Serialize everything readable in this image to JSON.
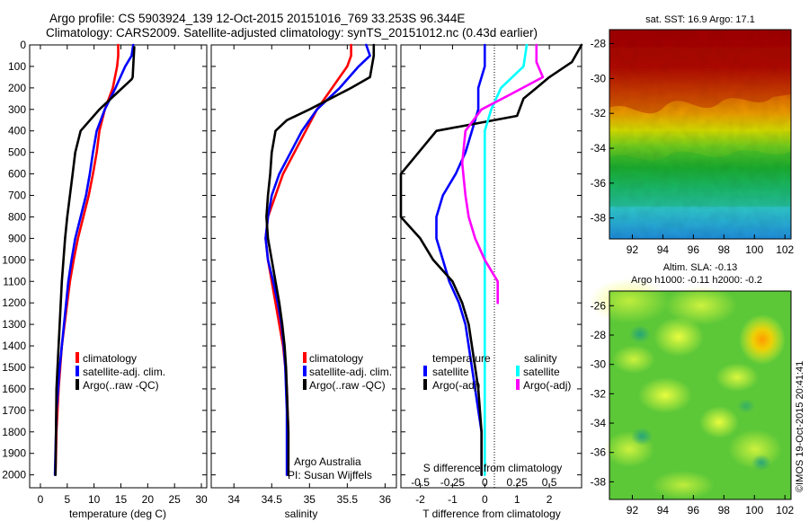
{
  "title_line1": "Argo profile: CS 5903924_139 12-Oct-2015 20151016_769 33.253S 96.344E",
  "title_line2": "Climatology: CARS2009. Satellite-adjusted climatology: synTS_20151012.nc (0.43d earlier)",
  "credit": "©IMOS 19-Oct-2015 20:41:41",
  "colors": {
    "climatology": "#ff0000",
    "satellite": "#0000ff",
    "argo": "#000000",
    "s_satellite": "#00ffff",
    "s_argo": "#ff00ff"
  },
  "chart_data": [
    {
      "type": "line",
      "xlabel": "temperature (deg C)",
      "xlim": [
        -2,
        31
      ],
      "ylim": [
        2060,
        0
      ],
      "xticks": [
        0,
        5,
        10,
        15,
        20,
        25,
        30
      ],
      "yticks": [
        0,
        100,
        200,
        300,
        400,
        500,
        600,
        700,
        800,
        900,
        1000,
        1100,
        1200,
        1300,
        1400,
        1500,
        1600,
        1700,
        1800,
        1900,
        2000
      ],
      "legend": [
        "climatology",
        "satellite-adj. clim.",
        "Argo(..raw -QC)"
      ],
      "legend_placement": "lower-right",
      "series": [
        {
          "name": "climatology",
          "color": "#ff0000",
          "x": [
            14.5,
            14.5,
            14.3,
            13.5,
            12.0,
            11.0,
            10.5,
            9.8,
            9.0,
            8.0,
            7.0,
            6.2,
            5.5,
            5.0,
            4.5,
            4.0,
            3.7,
            3.4,
            3.2,
            3.0,
            2.9,
            2.8
          ],
          "y": [
            0,
            50,
            100,
            200,
            300,
            400,
            500,
            600,
            700,
            800,
            900,
            1000,
            1100,
            1200,
            1300,
            1400,
            1500,
            1600,
            1700,
            1800,
            1900,
            2000
          ]
        },
        {
          "name": "satellite-adj. clim.",
          "color": "#0000ff",
          "x": [
            17.3,
            17.0,
            15.8,
            14.0,
            12.0,
            10.5,
            9.8,
            9.2,
            8.5,
            7.5,
            6.5,
            5.8,
            5.2,
            4.8,
            4.4,
            4.0,
            3.6,
            3.3,
            3.0,
            2.9,
            2.8,
            2.7
          ],
          "y": [
            0,
            50,
            100,
            200,
            300,
            400,
            500,
            600,
            700,
            800,
            900,
            1000,
            1100,
            1200,
            1300,
            1400,
            1500,
            1600,
            1700,
            1800,
            1900,
            2000
          ]
        },
        {
          "name": "Argo(..raw -QC)",
          "color": "#000000",
          "x": [
            17.5,
            17.3,
            17.2,
            17.0,
            14.0,
            11.0,
            7.5,
            6.5,
            6.0,
            5.5,
            5.0,
            4.6,
            4.3,
            4.0,
            3.8,
            3.6,
            3.4,
            3.2,
            3.0,
            2.9,
            2.8
          ],
          "y": [
            10,
            100,
            150,
            160,
            230,
            300,
            400,
            500,
            600,
            700,
            800,
            900,
            1000,
            1100,
            1200,
            1300,
            1400,
            1500,
            1600,
            1800,
            2000
          ]
        }
      ]
    },
    {
      "type": "line",
      "xlabel": "salinity",
      "xlim": [
        33.7,
        36.15
      ],
      "ylim": [
        2060,
        0
      ],
      "xticks": [
        34,
        34.5,
        35,
        35.5,
        36
      ],
      "legend": [
        "climatology",
        "satellite-adj. clim.",
        "Argo(..raw -QC)"
      ],
      "legend_placement": "lower-right",
      "annotation": [
        "Argo Australia",
        "PI: Susan Wijffels"
      ],
      "series": [
        {
          "name": "climatology",
          "color": "#ff0000",
          "x": [
            35.55,
            35.55,
            35.5,
            35.3,
            35.1,
            34.95,
            34.8,
            34.65,
            34.55,
            34.45,
            34.42,
            34.45,
            34.5,
            34.55,
            34.6,
            34.65,
            34.68,
            34.7,
            34.71,
            34.72,
            34.72,
            34.72
          ],
          "y": [
            0,
            50,
            100,
            200,
            300,
            400,
            500,
            600,
            700,
            800,
            900,
            1000,
            1100,
            1200,
            1300,
            1400,
            1500,
            1600,
            1700,
            1800,
            1900,
            2000
          ]
        },
        {
          "name": "satellite-adj. clim.",
          "color": "#0000ff",
          "x": [
            35.75,
            35.8,
            35.65,
            35.4,
            35.1,
            34.9,
            34.75,
            34.6,
            34.5,
            34.45,
            34.42,
            34.45,
            34.52,
            34.58,
            34.63,
            34.66,
            34.68,
            34.69,
            34.7,
            34.7,
            34.7,
            34.7
          ],
          "y": [
            0,
            50,
            100,
            200,
            300,
            400,
            500,
            600,
            700,
            800,
            900,
            1000,
            1100,
            1200,
            1300,
            1400,
            1500,
            1600,
            1700,
            1800,
            1900,
            2000
          ]
        },
        {
          "name": "Argo(..raw -QC)",
          "color": "#000000",
          "x": [
            35.85,
            35.85,
            35.8,
            35.55,
            35.0,
            34.7,
            34.55,
            34.5,
            34.48,
            34.45,
            34.43,
            34.45,
            34.5,
            34.55,
            34.6,
            34.64,
            34.67,
            34.69,
            34.7,
            34.71,
            34.72,
            34.72
          ],
          "y": [
            0,
            50,
            150,
            200,
            300,
            350,
            400,
            500,
            600,
            700,
            800,
            900,
            1000,
            1100,
            1200,
            1300,
            1400,
            1500,
            1600,
            1700,
            1800,
            2000
          ]
        }
      ]
    },
    {
      "type": "line",
      "xlabel": "T difference from climatology",
      "top_axis_label": "S difference from climatology",
      "xlim": [
        -2.6,
        3.0
      ],
      "ylim": [
        2060,
        0
      ],
      "xticks": [
        -2,
        -1,
        0,
        1,
        2
      ],
      "top_xticks": [
        {
          "label": "-0.5",
          "value": -2.0
        },
        {
          "label": "-0.25",
          "value": -1.0
        },
        {
          "label": "0",
          "value": 0.0
        },
        {
          "label": "0.25",
          "value": 1.0
        },
        {
          "label": "0.5",
          "value": 2.0
        }
      ],
      "legend_headers": [
        "temperature",
        "salinity"
      ],
      "legend": [
        "satellite",
        "Argo(-adj)",
        "satellite",
        "Argo(-adj)"
      ],
      "legend_placement": "lower-right",
      "series": [
        {
          "name": "satellite",
          "group": "temperature",
          "color": "#0000ff",
          "x": [
            0.0,
            0.0,
            -0.2,
            -0.2,
            -0.4,
            -0.6,
            -0.9,
            -1.3,
            -1.5,
            -1.5,
            -1.3,
            -1.1,
            -0.8,
            -0.6,
            -0.5,
            -0.4,
            -0.3,
            -0.2,
            -0.1,
            -0.1,
            -0.1
          ],
          "y": [
            0,
            100,
            200,
            300,
            400,
            500,
            600,
            700,
            800,
            900,
            1000,
            1100,
            1200,
            1300,
            1400,
            1500,
            1600,
            1700,
            1800,
            1900,
            2000
          ]
        },
        {
          "name": "Argo(-adj)",
          "group": "temperature",
          "color": "#000000",
          "x": [
            3.0,
            2.7,
            2.0,
            1.6,
            1.2,
            1.0,
            -1.5,
            -2.6,
            -2.6,
            -2.0,
            -1.6,
            -1.0,
            -0.7,
            -0.5,
            -0.4,
            -0.3,
            -0.2,
            -0.1,
            -0.1
          ],
          "y": [
            0,
            80,
            150,
            200,
            250,
            330,
            400,
            600,
            800,
            900,
            1000,
            1100,
            1200,
            1300,
            1400,
            1500,
            1600,
            1800,
            2000
          ]
        },
        {
          "name": "satellite",
          "group": "salinity",
          "color": "#00ffff",
          "x": [
            1.3,
            1.2,
            0.5,
            0.2,
            0.0,
            0.0,
            0.0,
            0.0,
            0.0,
            0.0,
            0.0,
            0.0,
            0.0,
            0.0,
            0.0,
            0.0,
            0.0,
            0.0,
            0.0,
            0.0
          ],
          "y": [
            0,
            100,
            200,
            300,
            400,
            500,
            600,
            700,
            800,
            900,
            1000,
            1100,
            1200,
            1300,
            1400,
            1500,
            1600,
            1700,
            1800,
            2000
          ]
        },
        {
          "name": "Argo(-adj)",
          "group": "salinity",
          "color": "#ff00ff",
          "x": [
            1.6,
            1.6,
            1.8,
            0.8,
            -0.1,
            -0.6,
            -0.7,
            -0.6,
            -0.5,
            -0.3,
            0.0,
            0.4,
            0.4
          ],
          "y": [
            0,
            80,
            150,
            230,
            300,
            400,
            550,
            700,
            800,
            900,
            1000,
            1100,
            1200
          ]
        }
      ]
    },
    {
      "type": "heatmap",
      "title": "sat. SST: 16.9 Argo: 17.1",
      "xlim": [
        90.5,
        102.4
      ],
      "ylim": [
        -39.2,
        -27.2
      ],
      "xticks": [
        92,
        94,
        96,
        98,
        100,
        102
      ],
      "yticks": [
        -28,
        -30,
        -32,
        -34,
        -36,
        -38
      ],
      "marker": {
        "x": 96.344,
        "y": -33.253
      }
    },
    {
      "type": "heatmap",
      "title": [
        "Altim. SLA: -0.13",
        "Argo h1000: -0.11 h2000: -0.2"
      ],
      "xlim": [
        90.5,
        102.4
      ],
      "ylim": [
        -39.2,
        -25.0
      ],
      "xticks": [
        92,
        94,
        96,
        98,
        100,
        102
      ],
      "yticks": [
        -26,
        -28,
        -30,
        -32,
        -34,
        -36,
        -38
      ],
      "marker": {
        "x": 96.344,
        "y": -33.253
      }
    }
  ]
}
